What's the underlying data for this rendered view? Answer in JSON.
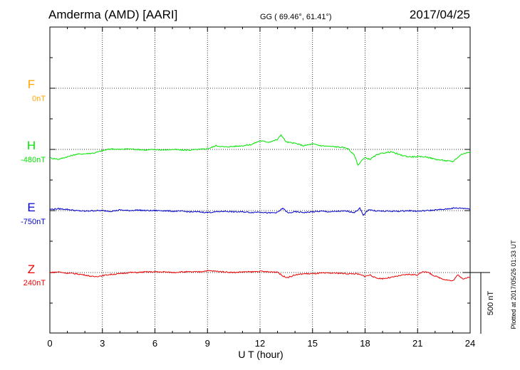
{
  "header": {
    "station": "Amderma (AMD)  [AARI]",
    "coords": "GG ( 69.46°,  61.41°)",
    "date": "2017/04/25"
  },
  "footer": {
    "xlabel": "U T (hour)",
    "plotted": "Plotted at 2017/05/26 01:33 UT"
  },
  "scale_label": "500 nT",
  "colors": {
    "F": "#ffa500",
    "H": "#00e600",
    "E": "#0000cc",
    "Z": "#ee0000"
  },
  "chart_data": {
    "type": "line",
    "xlim": [
      0,
      24
    ],
    "x_ticks": [
      0,
      3,
      6,
      9,
      12,
      15,
      18,
      21,
      24
    ],
    "x_tick_labels": [
      "0",
      "3",
      "6",
      "9",
      "12",
      "15",
      "18",
      "21",
      "24"
    ],
    "grid": true,
    "scale_bar_nT": 500,
    "series": [
      {
        "name": "F",
        "baseline_label": "0nT",
        "x": [],
        "y": []
      },
      {
        "name": "H",
        "baseline_label": "-480nT",
        "x": [
          0,
          0.5,
          1,
          1.5,
          2,
          2.5,
          3,
          3.5,
          4,
          4.5,
          5,
          5.5,
          6,
          6.5,
          7,
          7.5,
          8,
          8.5,
          9,
          9.5,
          10,
          10.5,
          11,
          11.5,
          12,
          12.5,
          13,
          13.2,
          13.5,
          14,
          14.5,
          15,
          15.5,
          16,
          16.5,
          17,
          17.4,
          17.6,
          17.8,
          18,
          18.3,
          18.6,
          19,
          19.5,
          20,
          20.5,
          21,
          21.5,
          22,
          22.5,
          23,
          23.5,
          24
        ],
        "y": [
          -70,
          -80,
          -60,
          -40,
          -35,
          -30,
          -10,
          5,
          0,
          5,
          0,
          -5,
          0,
          -5,
          0,
          -5,
          -5,
          0,
          5,
          30,
          20,
          25,
          30,
          40,
          70,
          60,
          80,
          120,
          60,
          50,
          30,
          45,
          30,
          25,
          20,
          10,
          -50,
          -130,
          -90,
          -70,
          -80,
          -50,
          -30,
          -20,
          -45,
          -60,
          -60,
          -60,
          -80,
          -90,
          -100,
          -40,
          -20
        ]
      },
      {
        "name": "E",
        "baseline_label": "-750nT",
        "x": [
          0,
          0.5,
          1,
          1.5,
          2,
          2.5,
          3,
          3.5,
          4,
          4.5,
          5,
          5.5,
          6,
          6.5,
          7,
          7.5,
          8,
          8.5,
          9,
          9.5,
          10,
          10.5,
          11,
          11.5,
          12,
          12.5,
          13,
          13.3,
          13.6,
          14,
          14.5,
          15,
          15.5,
          16,
          16.5,
          17,
          17.4,
          17.7,
          17.9,
          18.2,
          18.5,
          19,
          19.5,
          20,
          20.5,
          21,
          21.5,
          22,
          22.5,
          23,
          23.5,
          24
        ],
        "y": [
          10,
          15,
          10,
          0,
          -5,
          0,
          0,
          -5,
          5,
          0,
          5,
          0,
          0,
          0,
          -5,
          -5,
          -10,
          -10,
          -15,
          -10,
          -5,
          -10,
          -10,
          -15,
          -10,
          -20,
          -15,
          20,
          -20,
          -10,
          -15,
          -10,
          -5,
          -10,
          -5,
          -5,
          -15,
          20,
          -40,
          10,
          0,
          -5,
          -5,
          -5,
          0,
          -5,
          0,
          5,
          10,
          20,
          20,
          15
        ]
      },
      {
        "name": "Z",
        "baseline_label": "240nT",
        "x": [
          0,
          0.5,
          1,
          1.5,
          2,
          2.5,
          3,
          3.5,
          4,
          4.5,
          5,
          5.5,
          6,
          6.5,
          7,
          7.5,
          8,
          8.5,
          9,
          9.5,
          10,
          10.5,
          11,
          11.5,
          12,
          12.5,
          13,
          13.3,
          13.6,
          14,
          14.5,
          15,
          15.5,
          16,
          16.5,
          17,
          17.5,
          18,
          18.3,
          18.6,
          19,
          19.5,
          20,
          20.5,
          21,
          21.3,
          21.6,
          22,
          22.5,
          23,
          23.3,
          23.6,
          24
        ],
        "y": [
          0,
          5,
          -5,
          -10,
          -20,
          -35,
          -25,
          -15,
          -10,
          0,
          0,
          5,
          5,
          5,
          0,
          5,
          5,
          5,
          15,
          10,
          5,
          0,
          5,
          5,
          10,
          5,
          5,
          -30,
          -40,
          -20,
          -10,
          -10,
          -5,
          -5,
          -5,
          -10,
          -10,
          -30,
          -20,
          -45,
          -50,
          -40,
          -25,
          -15,
          -20,
          10,
          0,
          -30,
          -55,
          -70,
          -20,
          -50,
          -40
        ]
      }
    ]
  }
}
